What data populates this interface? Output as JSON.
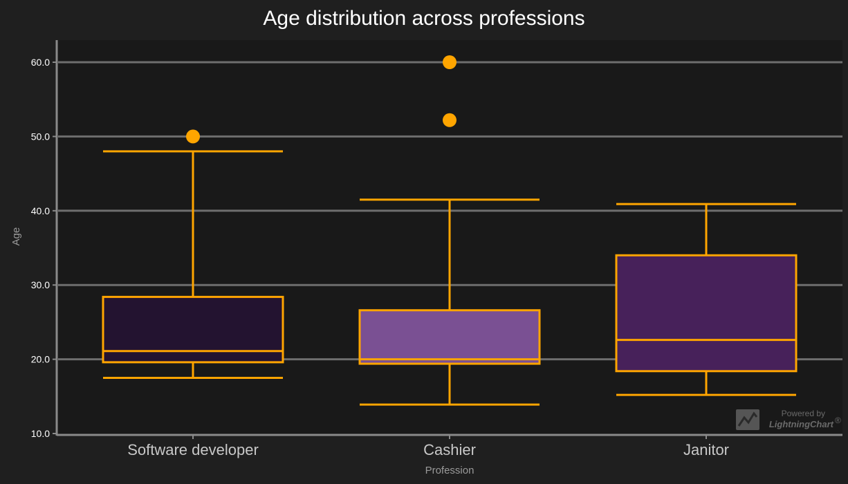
{
  "chart_data": {
    "type": "box",
    "title": "Age distribution across professions",
    "xlabel": "Profession",
    "ylabel": "Age",
    "ylim": [
      10,
      63
    ],
    "yticks": [
      10,
      20,
      30,
      40,
      50,
      60
    ],
    "ytick_labels": [
      "10.0",
      "20.0",
      "30.0",
      "40.0",
      "50.0",
      "60.0"
    ],
    "grid": true,
    "categories": [
      "Software developer",
      "Cashier",
      "Janitor"
    ],
    "boxes": [
      {
        "category": "Software developer",
        "whisker_low": 17.5,
        "q1": 19.6,
        "median": 21.1,
        "q3": 28.4,
        "whisker_high": 48.0,
        "outliers": [
          50.0
        ],
        "fill": "#231330"
      },
      {
        "category": "Cashier",
        "whisker_low": 13.9,
        "q1": 19.4,
        "median": 20.0,
        "q3": 26.6,
        "whisker_high": 41.5,
        "outliers": [
          52.2,
          60.0
        ],
        "fill": "#7a5093"
      },
      {
        "category": "Janitor",
        "whisker_low": 15.2,
        "q1": 18.4,
        "median": 22.6,
        "q3": 34.0,
        "whisker_high": 40.9,
        "outliers": [],
        "fill": "#47215a"
      }
    ],
    "stroke_color": "#ffa500",
    "outlier_color": "#ffa500",
    "background": "#1f1f1f",
    "plot_background": "#191919",
    "grid_color": "#6e6e6e"
  },
  "watermark": {
    "line1": "Powered by",
    "line2": "LightningChart",
    "mark": "®"
  }
}
